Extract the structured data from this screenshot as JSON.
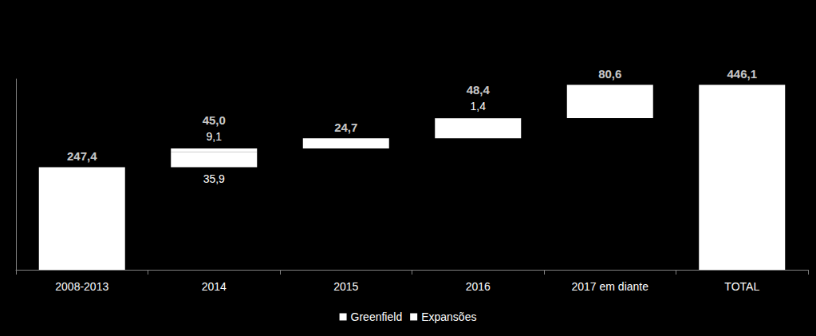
{
  "chart_data": {
    "type": "bar",
    "stacked": true,
    "categories": [
      "2008-2013",
      "2014",
      "2015",
      "2016",
      "2017 em diante",
      "TOTAL"
    ],
    "color": "#ffffff",
    "totals": {
      "values": [
        247.4,
        45.0,
        24.7,
        48.4,
        80.6,
        446.1
      ],
      "value_labels": [
        "247,4",
        "45,0",
        "24,7",
        "48,4",
        "80,6",
        "446,1"
      ]
    },
    "series": [
      {
        "name": "Greenfield",
        "color": "#ffffff",
        "values": [
          null,
          35.9,
          24.7,
          47.0,
          80.6,
          null
        ],
        "value_labels": [
          null,
          "35,9",
          null,
          null,
          null,
          null
        ]
      },
      {
        "name": "Expansões",
        "color": "#ffffff",
        "values": [
          null,
          9.1,
          null,
          1.4,
          null,
          null
        ],
        "value_labels": [
          null,
          "9,1",
          null,
          "1,4",
          null,
          null
        ]
      }
    ],
    "ylim": [
      0,
      460
    ],
    "tick_labels": "x",
    "grid": false,
    "legend": "bottom",
    "data_labels": true
  }
}
